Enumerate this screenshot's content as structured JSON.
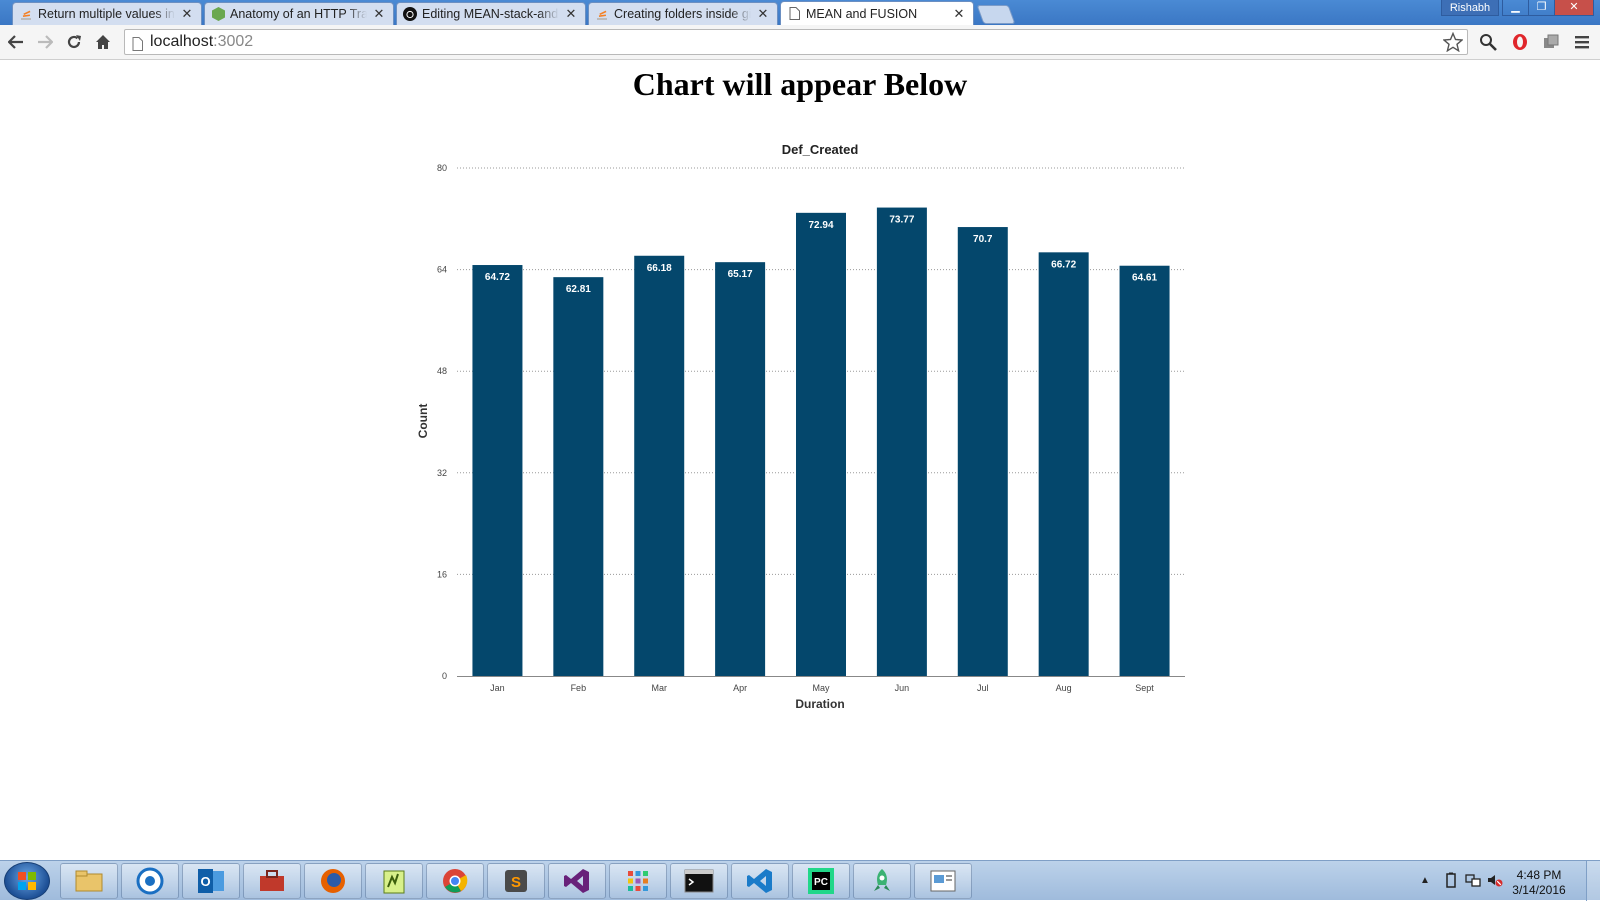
{
  "browser": {
    "tabs": [
      {
        "title": "Return multiple values in J",
        "icon": "stackoverflow-icon",
        "active": false
      },
      {
        "title": "Anatomy of an HTTP Trans",
        "icon": "nodejs-icon",
        "active": false
      },
      {
        "title": "Editing MEAN-stack-and-F",
        "icon": "github-icon",
        "active": false
      },
      {
        "title": "Creating folders inside git",
        "icon": "stackoverflow-icon",
        "active": false
      },
      {
        "title": "MEAN and FUSION",
        "icon": "page-icon",
        "active": true
      }
    ],
    "profile_name": "Rishabh",
    "address": {
      "host": "localhost",
      "port": ":3002"
    }
  },
  "page": {
    "heading": "Chart will appear Below"
  },
  "chart_data": {
    "type": "bar",
    "title": "Def_Created",
    "xlabel": "Duration",
    "ylabel": "Count",
    "ylim": [
      0,
      80
    ],
    "yticks": [
      0,
      16,
      32,
      48,
      64,
      80
    ],
    "grid": true,
    "categories": [
      "Jan",
      "Feb",
      "Mar",
      "Apr",
      "May",
      "Jun",
      "Jul",
      "Aug",
      "Sept"
    ],
    "values": [
      64.72,
      62.81,
      66.18,
      65.17,
      72.94,
      73.77,
      70.7,
      66.72,
      64.61
    ],
    "value_labels": [
      "64.72",
      "62.81",
      "66.18",
      "65.17",
      "72.94",
      "73.77",
      "70.7",
      "66.72",
      "64.61"
    ],
    "bar_color": "#04476c"
  },
  "taskbar": {
    "apps": [
      "file-explorer-icon",
      "chat-app-icon",
      "outlook-icon",
      "toolbox-icon",
      "firefox-icon",
      "editor-icon",
      "chrome-icon",
      "sublime-icon",
      "visual-studio-icon",
      "app-grid-icon",
      "command-prompt-icon",
      "vscode-icon",
      "pycharm-icon",
      "rocket-app-icon",
      "presentation-icon"
    ],
    "time": "4:48 PM",
    "date": "3/14/2016"
  }
}
